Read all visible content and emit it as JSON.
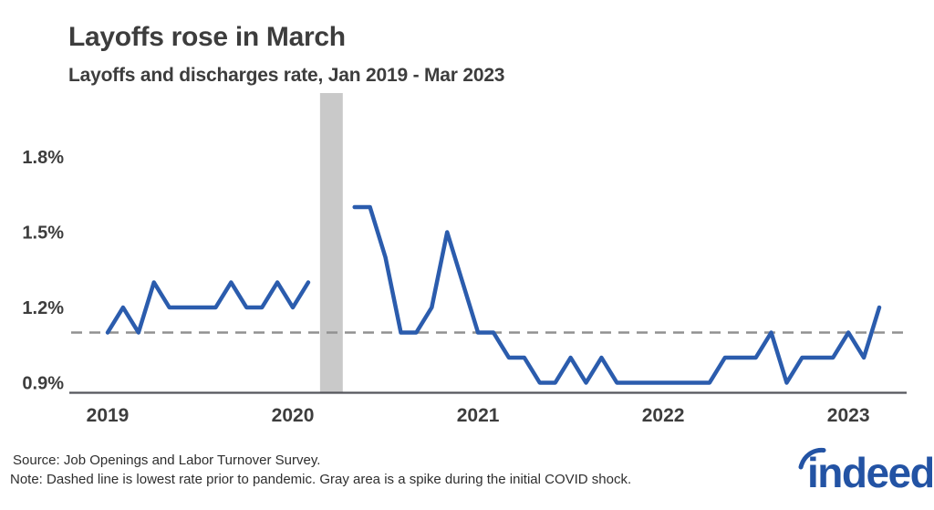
{
  "chart_data": {
    "type": "line",
    "title": "Layoffs rose in March",
    "subtitle": "Layoffs and discharges rate, Jan 2019 - Mar 2023",
    "series": [
      {
        "name": "Layoffs and discharges rate",
        "start_month": "2019-01",
        "end_month": "2023-03",
        "unit": "percent",
        "values": [
          1.1,
          1.2,
          1.1,
          1.3,
          1.2,
          1.2,
          1.2,
          1.2,
          1.3,
          1.2,
          1.2,
          1.3,
          1.2,
          1.3,
          null,
          null,
          1.6,
          1.6,
          1.4,
          1.1,
          1.1,
          1.2,
          1.5,
          1.3,
          1.1,
          1.1,
          1.0,
          1.0,
          0.9,
          0.9,
          1.0,
          0.9,
          1.0,
          0.9,
          0.9,
          0.9,
          0.9,
          0.9,
          0.9,
          0.9,
          1.0,
          1.0,
          1.0,
          1.1,
          0.9,
          1.0,
          1.0,
          1.0,
          1.1,
          1.0,
          1.2
        ]
      }
    ],
    "y_ticks": [
      {
        "label": "1.8%",
        "value": 1.8
      },
      {
        "label": "1.5%",
        "value": 1.5
      },
      {
        "label": "1.2%",
        "value": 1.2
      },
      {
        "label": "0.9%",
        "value": 0.9
      }
    ],
    "x_ticks": [
      {
        "label": "2019",
        "month_index": 0
      },
      {
        "label": "2020",
        "month_index": 12
      },
      {
        "label": "2021",
        "month_index": 24
      },
      {
        "label": "2022",
        "month_index": 36
      },
      {
        "label": "2023",
        "month_index": 48
      }
    ],
    "reference_line": {
      "value": 1.1,
      "meaning": "Dashed line is lowest rate prior to pandemic"
    },
    "covid_band": {
      "start_month_index": 14,
      "end_month_index": 15,
      "meaning": "Gray area is a spike during the initial COVID shock"
    },
    "ylim": [
      0.85,
      1.95
    ],
    "grid": false,
    "legend": false,
    "colors": {
      "line": "#2B5CAD",
      "band": "#C9C9C9",
      "reference": "#919191",
      "axis": "#55565C",
      "text": "#3D3D3D"
    }
  },
  "footer": {
    "source_note": "Source: Job Openings and Labor Turnover Survey.",
    "method_note": "Note: Dashed line is lowest rate prior to pandemic. Gray area is a spike during the initial COVID shock."
  },
  "branding": {
    "logo_text": "indeed",
    "logo_color": "#2353A4"
  }
}
